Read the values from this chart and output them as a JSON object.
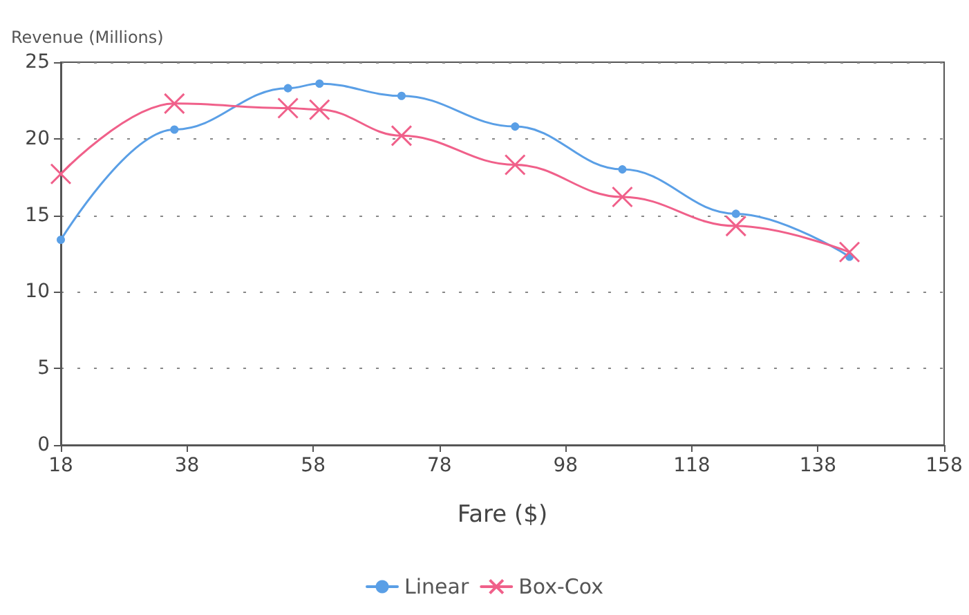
{
  "chart_data": {
    "type": "line",
    "ylabel": "Revenue (Millions)",
    "xlabel": "Fare ($)",
    "x": [
      18,
      36,
      54,
      59,
      72,
      90,
      107,
      125,
      143
    ],
    "series": [
      {
        "name": "Linear",
        "color": "#5a9fe6",
        "marker": "circle",
        "values": [
          13.4,
          20.6,
          23.3,
          23.6,
          22.8,
          20.8,
          18.0,
          15.1,
          12.3
        ]
      },
      {
        "name": "Box-Cox",
        "color": "#f0608a",
        "marker": "cross",
        "values": [
          17.7,
          22.3,
          22.0,
          21.9,
          20.2,
          18.3,
          16.2,
          14.3,
          12.6
        ]
      }
    ],
    "xlim": [
      18,
      158
    ],
    "xticks": [
      18,
      38,
      58,
      78,
      98,
      118,
      138,
      158
    ],
    "ylim": [
      0,
      25
    ],
    "yticks": [
      0,
      5,
      10,
      15,
      20,
      25
    ],
    "grid": "y",
    "legend": "bottom"
  }
}
